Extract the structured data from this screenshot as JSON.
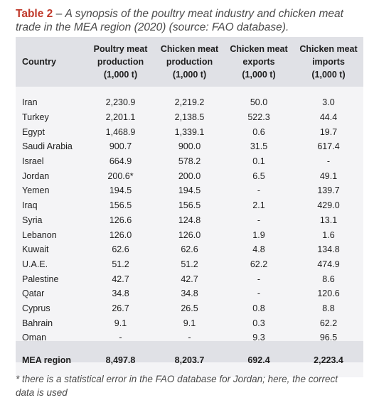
{
  "caption": {
    "label": "Table 2",
    "dash": " – ",
    "text": "A synopsis of the poultry meat industry and chicken meat trade in the MEA region (2020) (source: FAO database)."
  },
  "table": {
    "headers": [
      [
        "Country"
      ],
      [
        "Poultry meat",
        "production",
        "(1,000 t)"
      ],
      [
        "Chicken meat",
        "production",
        "(1,000 t)"
      ],
      [
        "Chicken meat",
        "exports",
        "(1,000 t)"
      ],
      [
        "Chicken meat",
        "imports",
        "(1,000 t)"
      ]
    ],
    "rows": [
      [
        "Iran",
        "2,230.9",
        "2,219.2",
        "50.0",
        "3.0"
      ],
      [
        "Turkey",
        "2,201.1",
        "2,138.5",
        "522.3",
        "44.4"
      ],
      [
        "Egypt",
        "1,468.9",
        "1,339.1",
        "0.6",
        "19.7"
      ],
      [
        "Saudi Arabia",
        "900.7",
        "900.0",
        "31.5",
        "617.4"
      ],
      [
        "Israel",
        "664.9",
        "578.2",
        "0.1",
        "-"
      ],
      [
        "Jordan",
        "200.6*",
        "200.0",
        "6.5",
        "49.1"
      ],
      [
        "Yemen",
        "194.5",
        "194.5",
        "-",
        "139.7"
      ],
      [
        "Iraq",
        "156.5",
        "156.5",
        "2.1",
        "429.0"
      ],
      [
        "Syria",
        "126.6",
        "124.8",
        "-",
        "13.1"
      ],
      [
        "Lebanon",
        "126.0",
        "126.0",
        "1.9",
        "1.6"
      ],
      [
        "Kuwait",
        "62.6",
        "62.6",
        "4.8",
        "134.8"
      ],
      [
        "U.A.E.",
        "51.2",
        "51.2",
        "62.2",
        "474.9"
      ],
      [
        "Palestine",
        "42.7",
        "42.7",
        "-",
        "8.6"
      ],
      [
        "Qatar",
        "34.8",
        "34.8",
        "-",
        "120.6"
      ],
      [
        "Cyprus",
        "26.7",
        "26.5",
        "0.8",
        "8.8"
      ],
      [
        "Bahrain",
        "9.1",
        "9.1",
        "0.3",
        "62.2"
      ],
      [
        "Oman",
        "-",
        "-",
        "9.3",
        "96.5"
      ]
    ],
    "total": [
      "MEA region",
      "8,497.8",
      "8,203.7",
      "692.4",
      "2,223.4"
    ]
  },
  "footnote": "* there is a statistical error in the FAO database for Jordan; here, the correct data is used",
  "colors": {
    "accent": "#c0392b",
    "header_bg": "#e0e1e6",
    "body_bg": "#f4f4f6"
  }
}
